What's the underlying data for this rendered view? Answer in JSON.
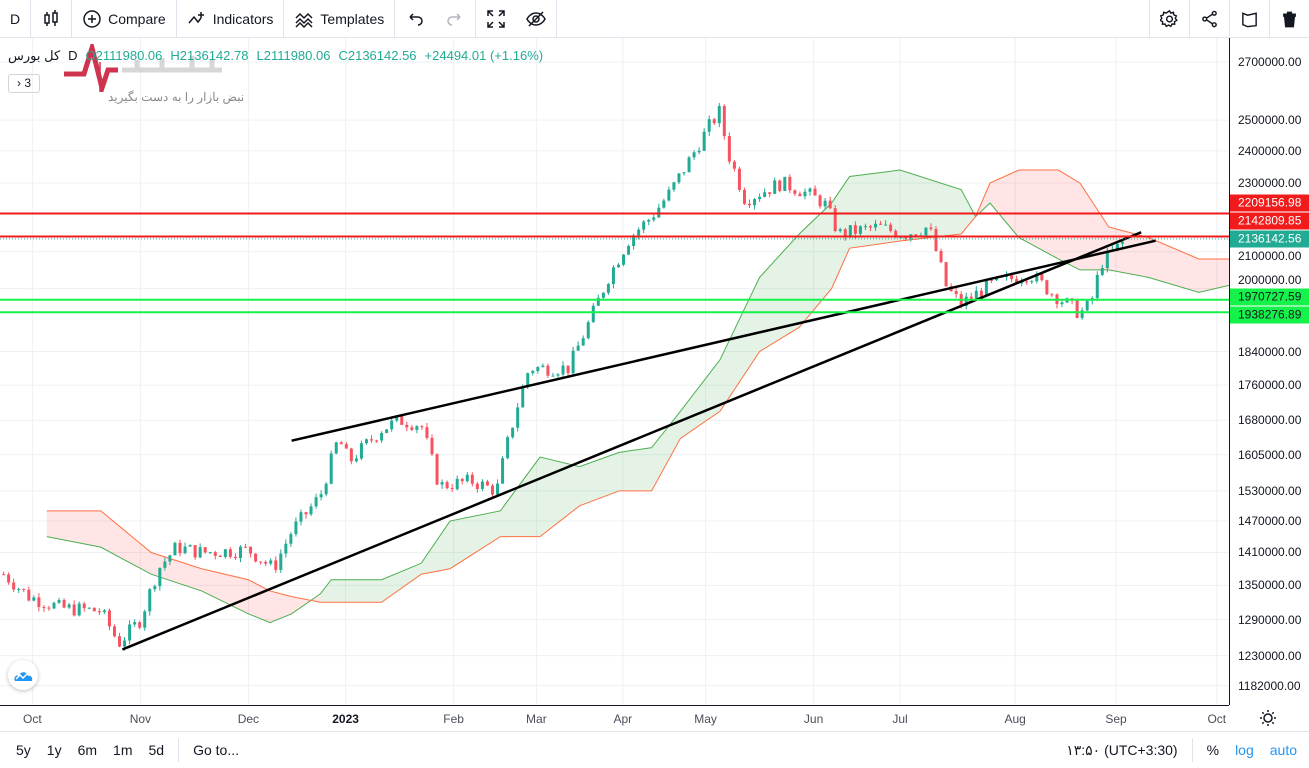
{
  "toolbar": {
    "interval": "D",
    "compare": "Compare",
    "indicators": "Indicators",
    "templates": "Templates"
  },
  "legend": {
    "symbol": "کل بورس",
    "interval": "D",
    "open": "O2111980.06",
    "high": "H2136142.78",
    "low": "L2111980.06",
    "close": "C2136142.56",
    "change": "+24494.01 (+1.16%)",
    "collapsed_count": "3"
  },
  "watermark": {
    "brand": "نبض بازار",
    "tagline": "نبض بازار را به دست بگیرید"
  },
  "bottom": {
    "ranges": [
      "5y",
      "1y",
      "6m",
      "1m",
      "5d"
    ],
    "goto": "Go to...",
    "time": "۱۳:۵۰ (UTC+3:30)",
    "percent": "%",
    "log": "log",
    "auto": "auto"
  },
  "colors": {
    "up": "#22ab94",
    "down": "#f7525f",
    "cloud_green": "#4caf50",
    "cloud_red": "#ff7043",
    "hline_red": "#f21b1b",
    "hline_green": "#15f24a"
  },
  "chart_data": {
    "type": "candlestick",
    "scale": "log",
    "x_unit": "days from chart start (late Sep 2022)",
    "time_ticks": [
      {
        "label": "Oct",
        "day": 9
      },
      {
        "label": "Nov",
        "day": 39
      },
      {
        "label": "Dec",
        "day": 69
      },
      {
        "label": "2023",
        "day": 96
      },
      {
        "label": "Feb",
        "day": 126
      },
      {
        "label": "Mar",
        "day": 149
      },
      {
        "label": "Apr",
        "day": 173
      },
      {
        "label": "May",
        "day": 196
      },
      {
        "label": "Jun",
        "day": 226
      },
      {
        "label": "Jul",
        "day": 250
      },
      {
        "label": "Aug",
        "day": 282
      },
      {
        "label": "Sep",
        "day": 310
      },
      {
        "label": "Oct",
        "day": 338
      }
    ],
    "price_ticks": [
      "2700000.00",
      "2500000.00",
      "2400000.00",
      "2300000.00",
      "2100000.00",
      "2000000.00",
      "1840000.00",
      "1760000.00",
      "1680000.00",
      "1605000.00",
      "1530000.00",
      "1470000.00",
      "1410000.00",
      "1350000.00",
      "1290000.00",
      "1230000.00",
      "1182000.00"
    ],
    "close_path": [
      [
        1,
        1370000
      ],
      [
        8,
        1330000
      ],
      [
        17,
        1310000
      ],
      [
        28,
        1305000
      ],
      [
        33,
        1250000
      ],
      [
        39,
        1290000
      ],
      [
        44,
        1380000
      ],
      [
        49,
        1420000
      ],
      [
        56,
        1410000
      ],
      [
        69,
        1415000
      ],
      [
        76,
        1380000
      ],
      [
        81,
        1450000
      ],
      [
        89,
        1520000
      ],
      [
        94,
        1640000
      ],
      [
        97,
        1590000
      ],
      [
        106,
        1660000
      ],
      [
        111,
        1680000
      ],
      [
        117,
        1670000
      ],
      [
        122,
        1540000
      ],
      [
        131,
        1550000
      ],
      [
        138,
        1530000
      ],
      [
        140,
        1600000
      ],
      [
        144,
        1720000
      ],
      [
        147,
        1800000
      ],
      [
        158,
        1800000
      ],
      [
        164,
        1920000
      ],
      [
        169,
        2030000
      ],
      [
        175,
        2140000
      ],
      [
        181,
        2200000
      ],
      [
        186,
        2270000
      ],
      [
        192,
        2380000
      ],
      [
        197,
        2480000
      ],
      [
        200,
        2530000
      ],
      [
        202,
        2400000
      ],
      [
        207,
        2250000
      ],
      [
        217,
        2300000
      ],
      [
        222,
        2280000
      ],
      [
        229,
        2240000
      ],
      [
        233,
        2150000
      ],
      [
        244,
        2170000
      ],
      [
        251,
        2150000
      ],
      [
        258,
        2170000
      ],
      [
        263,
        2000000
      ],
      [
        267,
        1960000
      ],
      [
        275,
        2010000
      ],
      [
        286,
        2040000
      ],
      [
        292,
        1990000
      ],
      [
        300,
        1935000
      ],
      [
        303,
        1960000
      ],
      [
        306,
        2070000
      ],
      [
        313,
        2136142
      ]
    ],
    "ichimoku_cloud": [
      [
        13,
        1440000,
        1490000
      ],
      [
        28,
        1420000,
        1490000
      ],
      [
        42,
        1370000,
        1410000
      ],
      [
        56,
        1340000,
        1380000
      ],
      [
        69,
        1300000,
        1360000
      ],
      [
        75,
        1285000,
        1340000
      ],
      [
        81,
        1300000,
        1330000
      ],
      [
        89,
        1335000,
        1320000
      ],
      [
        92,
        1360000,
        1320000
      ],
      [
        106,
        1360000,
        1320000
      ],
      [
        117,
        1390000,
        1370000
      ],
      [
        125,
        1470000,
        1380000
      ],
      [
        139,
        1490000,
        1440000
      ],
      [
        150,
        1600000,
        1440000
      ],
      [
        161,
        1580000,
        1500000
      ],
      [
        172,
        1610000,
        1530000
      ],
      [
        181,
        1620000,
        1530000
      ],
      [
        189,
        1700000,
        1640000
      ],
      [
        200,
        1820000,
        1700000
      ],
      [
        211,
        2030000,
        1840000
      ],
      [
        222,
        2150000,
        1900000
      ],
      [
        231,
        2240000,
        2000000
      ],
      [
        236,
        2320000,
        2110000
      ],
      [
        250,
        2340000,
        2130000
      ],
      [
        267,
        2280000,
        2150000
      ],
      [
        271,
        2200000,
        2200000
      ],
      [
        275,
        2240000,
        2300000
      ],
      [
        283,
        2140000,
        2340000
      ],
      [
        294,
        2080000,
        2340000
      ],
      [
        300,
        2050000,
        2300000
      ],
      [
        308,
        2050000,
        2170000
      ],
      [
        319,
        2030000,
        2140000
      ],
      [
        333,
        1990000,
        2080000
      ],
      [
        342,
        2010000,
        2080000
      ]
    ],
    "trend_lines": [
      [
        [
          34,
          1240000
        ],
        [
          317,
          2155000
        ]
      ],
      [
        [
          81,
          1635000
        ],
        [
          321,
          2131000
        ]
      ]
    ],
    "horizontal_lines": [
      {
        "price": 2209156.98,
        "label": "2209156.98",
        "color": "red"
      },
      {
        "price": 2142809.85,
        "label": "2142809.85",
        "color": "red"
      },
      {
        "price": 1970727.59,
        "label": "1970727.59",
        "color": "green"
      },
      {
        "price": 1938276.89,
        "label": "1938276.89",
        "color": "green"
      }
    ],
    "last_price": {
      "price": 2136142.56,
      "label": "2136142.56"
    }
  }
}
